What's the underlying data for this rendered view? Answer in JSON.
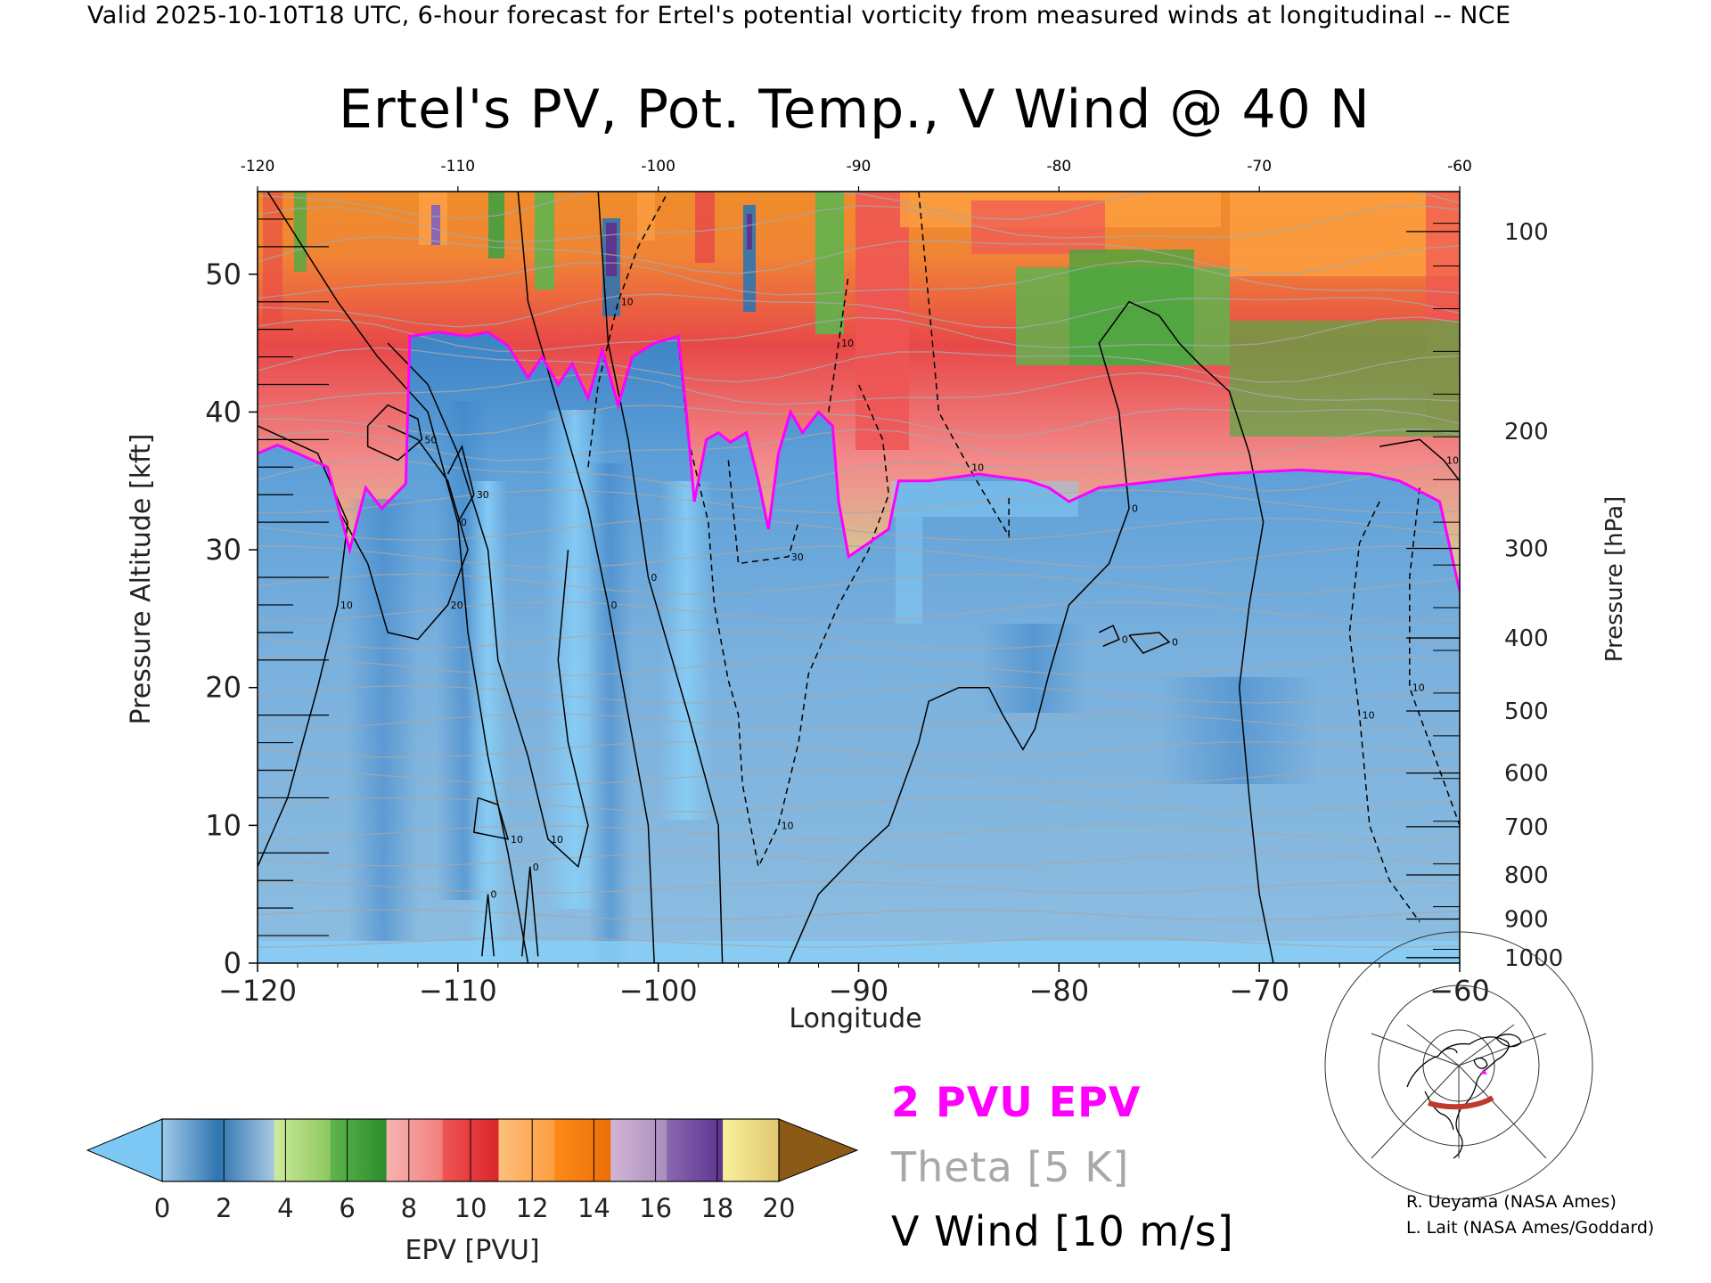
{
  "header": {
    "valid_line": "Valid 2025-10-10T18 UTC, 6-hour forecast for Ertel's potential vorticity from measured winds at longitudinal -- NCE"
  },
  "chart_data": {
    "type": "heatmap",
    "title": "Ertel's PV, Pot. Temp., V Wind @ 40 N",
    "xlabel": "Longitude",
    "ylabel": "Pressure Altitude [kft]",
    "ylabel_right": "Pressure [hPa]",
    "xlim": [
      -120,
      -60
    ],
    "ylim": [
      0,
      56
    ],
    "x_ticks": [
      -120,
      -110,
      -100,
      -90,
      -80,
      -70,
      -60
    ],
    "x_tick_labels": [
      "−120",
      "−110",
      "−100",
      "−90",
      "−80",
      "−70",
      "−60"
    ],
    "top_tick_labels": [
      "-120",
      "-110",
      "-100",
      "-90",
      "-80",
      "-70",
      "-60"
    ],
    "y_ticks": [
      0,
      10,
      20,
      30,
      40,
      50
    ],
    "y_tick_labels": [
      "0",
      "10",
      "20",
      "30",
      "40",
      "50"
    ],
    "pressure_ticks": [
      {
        "kft": 53.1,
        "label": "100"
      },
      {
        "kft": 38.6,
        "label": "200"
      },
      {
        "kft": 30.1,
        "label": "300"
      },
      {
        "kft": 23.6,
        "label": "400"
      },
      {
        "kft": 18.3,
        "label": "500"
      },
      {
        "kft": 13.8,
        "label": "600"
      },
      {
        "kft": 9.9,
        "label": "700"
      },
      {
        "kft": 6.4,
        "label": "800"
      },
      {
        "kft": 3.2,
        "label": "900"
      },
      {
        "kft": 0.4,
        "label": "1000"
      }
    ],
    "tropopause_2pvu": [
      [
        -120,
        37.0
      ],
      [
        -119,
        37.6
      ],
      [
        -118,
        37.0
      ],
      [
        -116.5,
        36.0
      ],
      [
        -115.4,
        30.0
      ],
      [
        -114.6,
        34.5
      ],
      [
        -113.8,
        33.0
      ],
      [
        -112.6,
        34.8
      ],
      [
        -112.4,
        45.5
      ],
      [
        -111,
        45.8
      ],
      [
        -109.5,
        45.5
      ],
      [
        -108.5,
        45.8
      ],
      [
        -107.5,
        44.8
      ],
      [
        -106.5,
        42.5
      ],
      [
        -105.8,
        44.0
      ],
      [
        -105,
        42.0
      ],
      [
        -104.3,
        43.5
      ],
      [
        -103.5,
        41.0
      ],
      [
        -102.8,
        44.5
      ],
      [
        -102,
        40.5
      ],
      [
        -101.3,
        44.0
      ],
      [
        -100.2,
        45.0
      ],
      [
        -99,
        45.5
      ],
      [
        -98.6,
        40.0
      ],
      [
        -98.2,
        33.5
      ],
      [
        -97.6,
        38.0
      ],
      [
        -97,
        38.5
      ],
      [
        -96.4,
        37.8
      ],
      [
        -95.6,
        38.5
      ],
      [
        -95,
        35.0
      ],
      [
        -94.5,
        31.5
      ],
      [
        -94,
        37.0
      ],
      [
        -93.4,
        40.0
      ],
      [
        -92.8,
        38.5
      ],
      [
        -92,
        40.0
      ],
      [
        -91.3,
        39.0
      ],
      [
        -91,
        33.5
      ],
      [
        -90.5,
        29.5
      ],
      [
        -89.5,
        30.5
      ],
      [
        -88.5,
        31.5
      ],
      [
        -88,
        35.0
      ],
      [
        -86.5,
        35.0
      ],
      [
        -84,
        35.5
      ],
      [
        -81.5,
        35.0
      ],
      [
        -80.5,
        34.5
      ],
      [
        -79.5,
        33.5
      ],
      [
        -78,
        34.5
      ],
      [
        -75,
        35.0
      ],
      [
        -72,
        35.5
      ],
      [
        -68,
        35.8
      ],
      [
        -64.5,
        35.5
      ],
      [
        -63,
        35.0
      ],
      [
        -61,
        33.5
      ],
      [
        -60,
        27.0
      ]
    ],
    "vwind_contours": [
      {
        "label": "0",
        "style": "solid",
        "points": [
          [
            -119.5,
            56
          ],
          [
            -116,
            48
          ],
          [
            -114,
            44
          ],
          [
            -111.5,
            40
          ],
          [
            -110,
            32
          ],
          [
            -109.5,
            24
          ],
          [
            -108.5,
            15
          ],
          [
            -107.5,
            8
          ],
          [
            -106.5,
            0
          ]
        ]
      },
      {
        "label": "0",
        "style": "solid",
        "points": [
          [
            -107,
            56
          ],
          [
            -106.5,
            48
          ],
          [
            -104.5,
            38
          ],
          [
            -103.5,
            33
          ],
          [
            -102.5,
            26
          ],
          [
            -101.5,
            18
          ],
          [
            -100.5,
            10
          ],
          [
            -100.2,
            0
          ]
        ]
      },
      {
        "label": "0",
        "style": "solid",
        "points": [
          [
            -103,
            56
          ],
          [
            -102.5,
            45
          ],
          [
            -101.5,
            38
          ],
          [
            -100.5,
            28
          ],
          [
            -98.5,
            18
          ],
          [
            -97,
            10
          ],
          [
            -96.8,
            0
          ]
        ]
      },
      {
        "label": "0",
        "style": "solid",
        "points": [
          [
            -93.5,
            0
          ],
          [
            -92,
            5
          ],
          [
            -90,
            8
          ],
          [
            -88.5,
            10
          ],
          [
            -87.5,
            14
          ],
          [
            -87,
            16
          ],
          [
            -86.5,
            19
          ],
          [
            -85,
            20
          ],
          [
            -83.5,
            20
          ],
          [
            -82.8,
            18
          ],
          [
            -81.8,
            15.5
          ],
          [
            -81.2,
            17
          ],
          [
            -80.5,
            21
          ],
          [
            -79.5,
            26
          ],
          [
            -77.5,
            29
          ],
          [
            -76.5,
            33
          ],
          [
            -77,
            40
          ],
          [
            -78,
            45
          ],
          [
            -76.5,
            48
          ],
          [
            -75,
            47
          ],
          [
            -74,
            45
          ],
          [
            -73,
            43.5
          ],
          [
            -71.5,
            41.5
          ],
          [
            -70.5,
            37
          ],
          [
            -69.8,
            32
          ],
          [
            -70.5,
            26
          ],
          [
            -71,
            20
          ],
          [
            -70.5,
            12
          ],
          [
            -70,
            5
          ],
          [
            -69.3,
            0
          ]
        ]
      },
      {
        "label": "10",
        "style": "solid",
        "points": [
          [
            -120,
            39
          ],
          [
            -117,
            37
          ],
          [
            -115.5,
            32
          ],
          [
            -116,
            26
          ],
          [
            -117,
            20
          ],
          [
            -118.5,
            12
          ],
          [
            -120,
            7
          ]
        ]
      },
      {
        "label": "10",
        "style": "solid",
        "points": [
          [
            -113.5,
            45
          ],
          [
            -111.5,
            42
          ],
          [
            -110,
            37
          ],
          [
            -108.5,
            30
          ],
          [
            -108,
            22
          ],
          [
            -106.5,
            15
          ],
          [
            -105.5,
            9
          ],
          [
            -104,
            7
          ],
          [
            -103.5,
            10
          ],
          [
            -104.5,
            16
          ],
          [
            -105,
            22
          ],
          [
            -104.5,
            30
          ]
        ]
      },
      {
        "label": "20",
        "style": "solid",
        "points": [
          [
            -116,
            33
          ],
          [
            -114.5,
            29
          ],
          [
            -113.5,
            24
          ],
          [
            -112,
            23.5
          ],
          [
            -110.5,
            26
          ],
          [
            -109.5,
            30
          ],
          [
            -110.5,
            35
          ],
          [
            -112,
            38
          ],
          [
            -113.5,
            39
          ]
        ]
      },
      {
        "label": "30",
        "style": "solid",
        "points": [
          [
            -110.5,
            35.5
          ],
          [
            -109.8,
            37.5
          ],
          [
            -109.2,
            34
          ],
          [
            -110,
            32
          ]
        ]
      },
      {
        "label": "50",
        "style": "solid",
        "points": [
          [
            -114.5,
            39
          ],
          [
            -113.5,
            40.5
          ],
          [
            -112,
            39.5
          ],
          [
            -111.8,
            38
          ],
          [
            -113,
            36.5
          ],
          [
            -114.5,
            37.5
          ],
          [
            -114.5,
            39
          ]
        ]
      },
      {
        "label": "10",
        "style": "solid",
        "points": [
          [
            -109,
            12
          ],
          [
            -108,
            11.5
          ],
          [
            -107.5,
            9
          ],
          [
            -109.2,
            9.5
          ],
          [
            -109,
            12
          ]
        ]
      },
      {
        "label": "0",
        "style": "solid",
        "points": [
          [
            -108.8,
            0.5
          ],
          [
            -108.5,
            5
          ],
          [
            -108.2,
            0.5
          ]
        ]
      },
      {
        "label": "0",
        "style": "solid",
        "points": [
          [
            -106.8,
            0.5
          ],
          [
            -106.4,
            7
          ],
          [
            -106,
            0.5
          ]
        ]
      },
      {
        "label": "0",
        "style": "solid",
        "points": [
          [
            -78,
            24
          ],
          [
            -77.3,
            24.5
          ],
          [
            -77,
            23.5
          ],
          [
            -77.8,
            23
          ]
        ]
      },
      {
        "label": "0",
        "style": "solid",
        "points": [
          [
            -76.5,
            23.8
          ],
          [
            -75,
            24
          ],
          [
            -74.5,
            23.3
          ],
          [
            -75.8,
            22.5
          ],
          [
            -76.5,
            23.8
          ]
        ]
      },
      {
        "label": "10",
        "style": "solid",
        "points": [
          [
            -64,
            37.5
          ],
          [
            -62,
            38
          ],
          [
            -60.8,
            36.5
          ],
          [
            -60,
            35
          ]
        ]
      },
      {
        "label": "10",
        "style": "dashed",
        "points": [
          [
            -103.5,
            36
          ],
          [
            -103,
            42
          ],
          [
            -102,
            48
          ],
          [
            -101,
            52
          ],
          [
            -99.5,
            56
          ]
        ]
      },
      {
        "label": "10",
        "style": "dashed",
        "points": [
          [
            -99,
            45
          ],
          [
            -98.5,
            38
          ],
          [
            -97.5,
            32
          ],
          [
            -97.2,
            26
          ],
          [
            -96.5,
            20.5
          ],
          [
            -96,
            18
          ],
          [
            -95.8,
            13
          ],
          [
            -95,
            7
          ],
          [
            -94,
            10
          ],
          [
            -93,
            16
          ],
          [
            -92.5,
            21
          ],
          [
            -91,
            26
          ],
          [
            -89.5,
            30
          ],
          [
            -88.5,
            34
          ],
          [
            -88.8,
            38
          ],
          [
            -90,
            42
          ]
        ]
      },
      {
        "label": "10",
        "style": "dashed",
        "points": [
          [
            -91.5,
            40
          ],
          [
            -91,
            45
          ],
          [
            -90.5,
            50
          ]
        ]
      },
      {
        "label": "10",
        "style": "dashed",
        "points": [
          [
            -87,
            56
          ],
          [
            -86.5,
            48
          ],
          [
            -86,
            40
          ],
          [
            -84.5,
            36
          ],
          [
            -83.5,
            33.5
          ],
          [
            -82.5,
            31
          ],
          [
            -82.5,
            34
          ]
        ]
      },
      {
        "label": "10",
        "style": "dashed",
        "points": [
          [
            -64,
            33.5
          ],
          [
            -65,
            30.5
          ],
          [
            -65.5,
            24
          ],
          [
            -65,
            18
          ],
          [
            -64.5,
            10
          ],
          [
            -63.5,
            6
          ],
          [
            -62,
            3
          ]
        ]
      },
      {
        "label": "10",
        "style": "dashed",
        "points": [
          [
            -62,
            34.5
          ],
          [
            -62.5,
            28
          ],
          [
            -62.5,
            20
          ],
          [
            -61,
            14
          ],
          [
            -60,
            10
          ]
        ]
      },
      {
        "label": "30",
        "style": "dashed",
        "points": [
          [
            -96.5,
            36.5
          ],
          [
            -96,
            29
          ],
          [
            -93.5,
            29.5
          ],
          [
            -93,
            32
          ]
        ]
      }
    ],
    "colorbar": {
      "label": "EPV [PVU]",
      "ticks": [
        "0",
        "2",
        "4",
        "6",
        "8",
        "10",
        "12",
        "14",
        "16",
        "18",
        "20"
      ],
      "under_color": "#7ec8f5",
      "over_color": "#8b5a16",
      "segments": [
        [
          "#9fcbe8",
          "#2f74b0"
        ],
        [
          "#2f74b0",
          "#aac9e2"
        ],
        [
          "#cdeb9c",
          "#8cc65e"
        ],
        [
          "#5fb44d",
          "#2b8d2c"
        ],
        [
          "#f6b4b0",
          "#f27e7e"
        ],
        [
          "#ef5555",
          "#d9242a"
        ],
        [
          "#fdc07d",
          "#fd9d40"
        ],
        [
          "#fd8a18",
          "#ec6f08"
        ],
        [
          "#d1b5d4",
          "#ab8dbf"
        ],
        [
          "#8a67b0",
          "#5c3590"
        ],
        [
          "#f6f199",
          "#e2c672"
        ]
      ]
    },
    "colors": {
      "tropopause": "#ff00ff",
      "theta": "#a8a8a8",
      "wind": "#000000",
      "map_route": "#c0392b",
      "map_marker": "#ff00ff"
    }
  },
  "legend": {
    "pv": "2 PVU EPV",
    "theta": "Theta [5 K]",
    "vwind": "V Wind [10 m/s]"
  },
  "credits": {
    "line1": "R. Ueyama (NASA Ames)",
    "line2": "L. Lait (NASA Ames/Goddard)"
  }
}
